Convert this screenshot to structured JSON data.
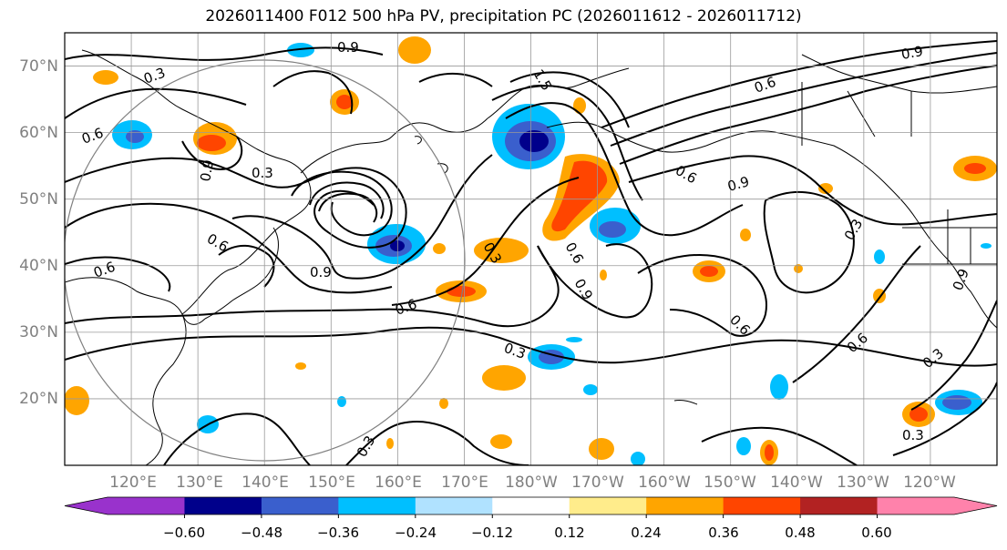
{
  "title": "2026011400 F012 500 hPa PV, precipitation PC (2026011612 - 2026011712)",
  "colors": {
    "grid": "#999999",
    "coast": "#000000",
    "contour": "#000000",
    "circle": "#808080"
  },
  "chart_data": {
    "type": "map",
    "title": "2026011400 F012 500 hPa PV, precipitation PC (2026011612 - 2026011712)",
    "lon_ticks": [
      "120°E",
      "130°E",
      "140°E",
      "150°E",
      "160°E",
      "170°E",
      "180°W",
      "170°W",
      "160°W",
      "150°W",
      "140°W",
      "130°W",
      "120°W"
    ],
    "lat_ticks": [
      "20°N",
      "30°N",
      "40°N",
      "50°N",
      "60°N",
      "70°N"
    ],
    "lat_range": [
      10,
      75
    ],
    "lon_range": [
      110,
      250
    ],
    "colorbar": {
      "tick_labels": [
        "−0.60",
        "−0.48",
        "−0.36",
        "−0.24",
        "−0.12",
        "0.12",
        "0.24",
        "0.36",
        "0.48",
        "0.60"
      ],
      "colors": [
        "#9932cc",
        "#00008b",
        "#3a5fcd",
        "#00bfff",
        "#b0e2ff",
        "#ffffff",
        "#ffec8b",
        "#ffa500",
        "#ff4500",
        "#b22222",
        "#ff82ab"
      ],
      "extend": "both"
    },
    "contour_labels": [
      "0.9",
      "0.3",
      "1.5",
      "0.6",
      "0.9",
      "0.3",
      "0.6",
      "0.6",
      "0.9",
      "0.9",
      "0.6",
      "0.3",
      "0.6",
      "0.9",
      "0.6",
      "0.3",
      "0.3",
      "0.6",
      "0.3",
      "0.9",
      "0.6",
      "0.3",
      "0.3",
      "0.9",
      "0.6"
    ]
  }
}
